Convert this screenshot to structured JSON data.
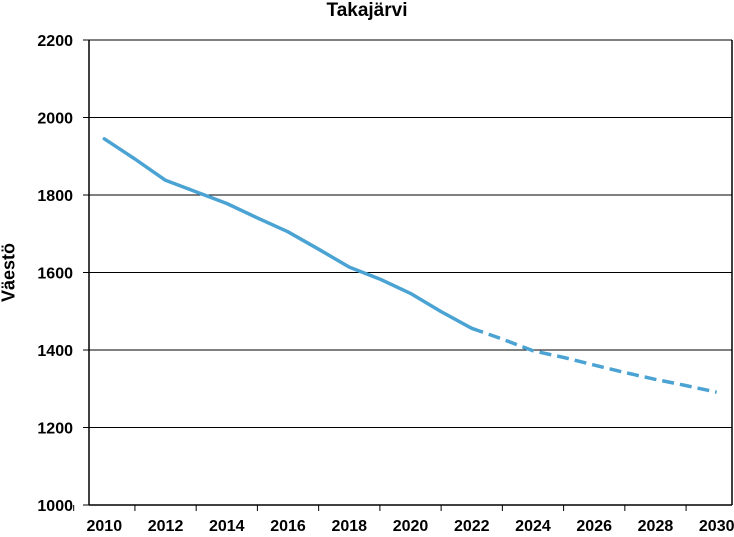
{
  "chart_data": {
    "type": "line",
    "title": "Takajärvi",
    "xlabel": "",
    "ylabel": "Väestö",
    "xlim": [
      2009.5,
      2030.5
    ],
    "ylim": [
      1000,
      2200
    ],
    "yticks": [
      1000,
      1200,
      1400,
      1600,
      1800,
      2000,
      2200
    ],
    "xticks": [
      2010,
      2012,
      2014,
      2016,
      2018,
      2020,
      2022,
      2024,
      2026,
      2028,
      2030
    ],
    "grid": "horizontal",
    "color": "#4BA3D3",
    "series": [
      {
        "style": "solid",
        "x": [
          2010,
          2011,
          2012,
          2013,
          2014,
          2015,
          2016,
          2017,
          2018,
          2019,
          2020,
          2021,
          2022
        ],
        "y": [
          1945,
          1893,
          1838,
          1808,
          1778,
          1741,
          1705,
          1660,
          1614,
          1583,
          1546,
          1499,
          1456
        ]
      },
      {
        "style": "dashed",
        "x": [
          2022,
          2023,
          2024,
          2025,
          2026,
          2027,
          2028,
          2029,
          2030
        ],
        "y": [
          1456,
          1428,
          1398,
          1381,
          1361,
          1342,
          1324,
          1308,
          1291
        ]
      }
    ]
  }
}
